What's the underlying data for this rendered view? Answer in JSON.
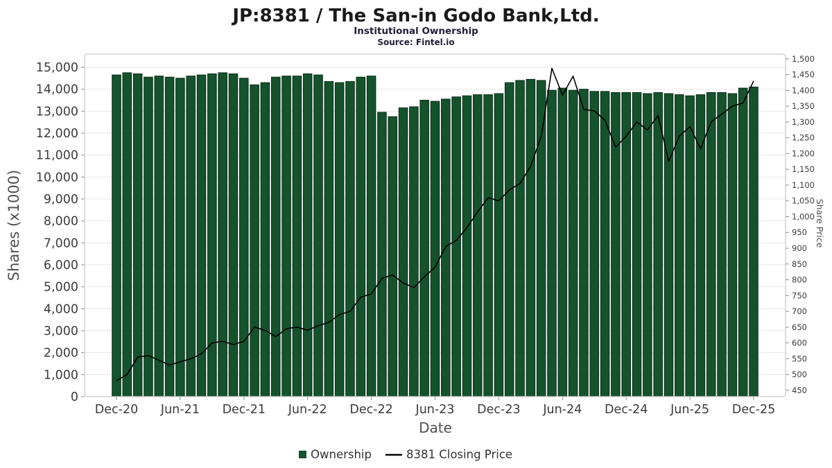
{
  "header": {
    "title": "JP:8381 / The San-in Godo Bank,Ltd.",
    "subtitle": "Institutional Ownership",
    "source": "Source: Fintel.io"
  },
  "legend": {
    "ownership_label": "Ownership",
    "price_label": "8381 Closing Price"
  },
  "colors": {
    "bar_fill": "#14532d",
    "bar_stroke": "#0a2c17",
    "price_line": "#000000",
    "grid": "#e6e6e6",
    "plot_border": "#c9c9c9",
    "tick": "#8a8a8a",
    "tick_label": "#3b3b3b",
    "axis_label": "#4f4f4f"
  },
  "chart_data": {
    "type": "bar",
    "title": "JP:8381 / The San-in Godo Bank,Ltd.",
    "subtitle": "Institutional Ownership",
    "source": "Source: Fintel.io",
    "legend_position": "bottom",
    "grid": "horizontal",
    "x": [
      "Dec-20",
      "Jan-21",
      "Feb-21",
      "Mar-21",
      "Apr-21",
      "May-21",
      "Jun-21",
      "Jul-21",
      "Aug-21",
      "Sep-21",
      "Oct-21",
      "Nov-21",
      "Dec-21",
      "Jan-22",
      "Feb-22",
      "Mar-22",
      "Apr-22",
      "May-22",
      "Jun-22",
      "Jul-22",
      "Aug-22",
      "Sep-22",
      "Oct-22",
      "Nov-22",
      "Dec-22",
      "Jan-23",
      "Feb-23",
      "Mar-23",
      "Apr-23",
      "May-23",
      "Jun-23",
      "Jul-23",
      "Aug-23",
      "Sep-23",
      "Oct-23",
      "Nov-23",
      "Dec-23",
      "Jan-24",
      "Feb-24",
      "Mar-24",
      "Apr-24",
      "May-24",
      "Jun-24",
      "Jul-24",
      "Aug-24",
      "Sep-24",
      "Oct-24",
      "Nov-24",
      "Dec-24",
      "Jan-25",
      "Feb-25",
      "Mar-25",
      "Apr-25",
      "May-25",
      "Jun-25",
      "Jul-25",
      "Aug-25",
      "Sep-25",
      "Oct-25",
      "Nov-25",
      "Dec-25"
    ],
    "x_axis": {
      "label": "Date",
      "tick_every": 6,
      "tick_labels": [
        "Dec-20",
        "Jun-21",
        "Dec-21",
        "Jun-22",
        "Dec-22",
        "Jun-23",
        "Dec-23",
        "Jun-24",
        "Dec-24",
        "Jun-25",
        "Dec-25"
      ]
    },
    "left_axis": {
      "label": "Shares (x1000)",
      "min": 0,
      "max": 15600,
      "tick_start": 0,
      "tick_end": 15000,
      "tick_step": 1000
    },
    "right_axis": {
      "label": "Share Price",
      "min": 430,
      "max": 1515,
      "tick_start": 450,
      "tick_end": 1500,
      "tick_step": 50
    },
    "series": [
      {
        "name": "Ownership",
        "type": "bar",
        "axis": "left",
        "values": [
          14650,
          14750,
          14700,
          14550,
          14600,
          14550,
          14500,
          14600,
          14650,
          14700,
          14750,
          14700,
          14500,
          14200,
          14300,
          14550,
          14600,
          14600,
          14700,
          14650,
          14350,
          14300,
          14350,
          14550,
          14600,
          12950,
          12750,
          13150,
          13200,
          13500,
          13450,
          13550,
          13650,
          13700,
          13750,
          13750,
          13800,
          14300,
          14400,
          14450,
          14400,
          13950,
          14050,
          13950,
          14000,
          13900,
          13900,
          13850,
          13850,
          13850,
          13800,
          13850,
          13800,
          13750,
          13700,
          13750,
          13850,
          13850,
          13800,
          14050,
          14100
        ]
      },
      {
        "name": "8381 Closing Price",
        "type": "line",
        "axis": "right",
        "values": [
          480,
          500,
          555,
          560,
          545,
          530,
          540,
          550,
          565,
          600,
          605,
          595,
          605,
          650,
          640,
          620,
          645,
          650,
          640,
          655,
          665,
          690,
          700,
          745,
          755,
          805,
          815,
          790,
          775,
          810,
          840,
          905,
          925,
          965,
          1015,
          1060,
          1050,
          1085,
          1105,
          1160,
          1255,
          1470,
          1385,
          1445,
          1340,
          1335,
          1305,
          1220,
          1255,
          1300,
          1275,
          1320,
          1175,
          1255,
          1285,
          1215,
          1300,
          1325,
          1350,
          1360,
          1430
        ]
      }
    ]
  }
}
